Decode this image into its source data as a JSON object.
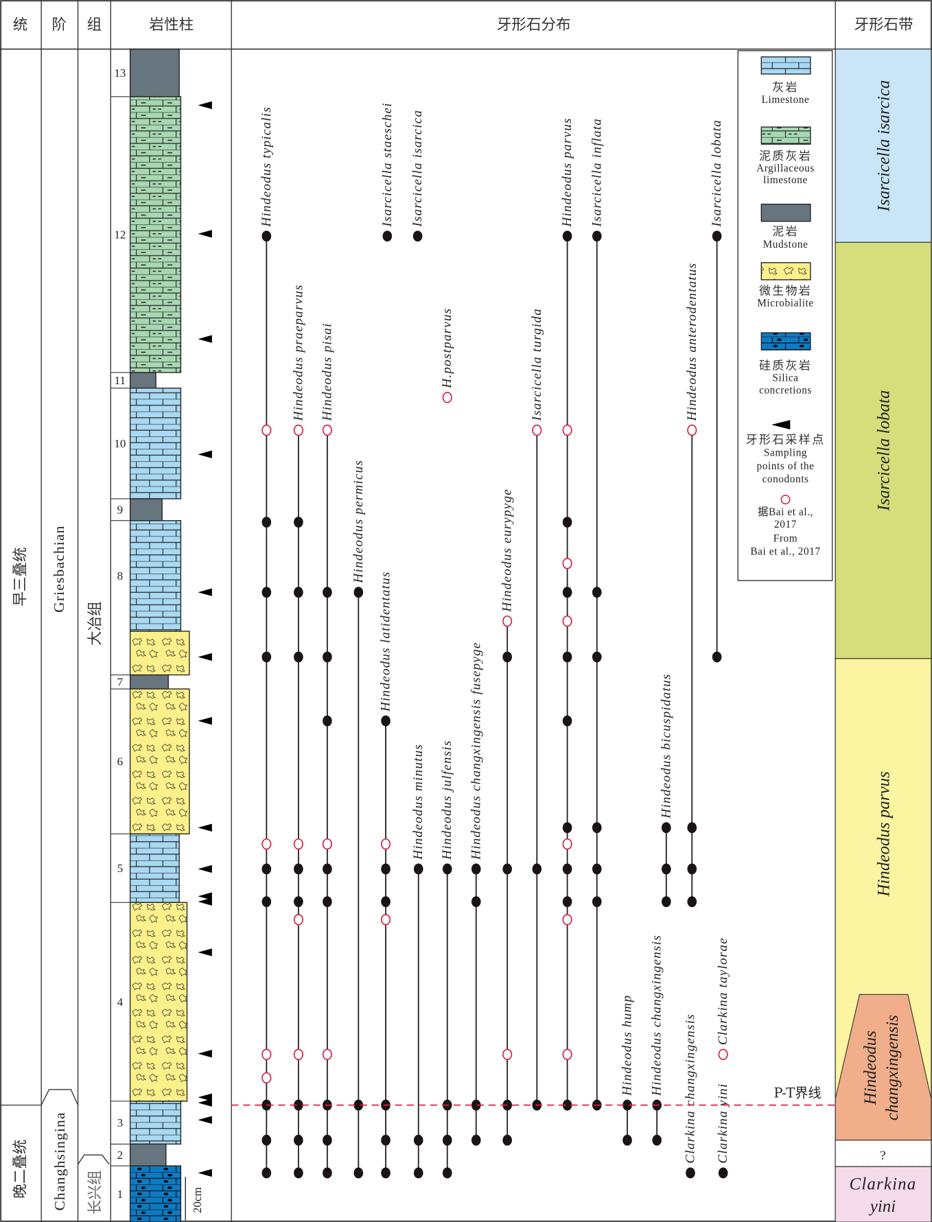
{
  "header": {
    "series": "统",
    "stage": "阶",
    "formation": "组",
    "lithology": "岩性柱",
    "distribution": "牙形石分布",
    "zones": "牙形石带"
  },
  "series": [
    "早三叠统",
    "晚二叠统"
  ],
  "stages": [
    "Griesbachian",
    "Changhsingina"
  ],
  "formations": [
    "大冶组",
    "长兴组"
  ],
  "beds": [
    {
      "number": "13",
      "lithology": "mudstone"
    },
    {
      "number": "12",
      "lithology": "argillaceous-limestone"
    },
    {
      "number": "11",
      "lithology": "mudstone"
    },
    {
      "number": "10",
      "lithology": "limestone"
    },
    {
      "number": "9",
      "lithology": "mudstone"
    },
    {
      "number": "8",
      "lithology": "limestone"
    },
    {
      "number": "",
      "lithology": "microbialite"
    },
    {
      "number": "7",
      "lithology": "mudstone"
    },
    {
      "number": "6",
      "lithology": "microbialite"
    },
    {
      "number": "5",
      "lithology": "limestone"
    },
    {
      "number": "4",
      "lithology": "microbialite"
    },
    {
      "number": "3",
      "lithology": "limestone"
    },
    {
      "number": "2",
      "lithology": "mudstone"
    },
    {
      "number": "1",
      "lithology": "silica-concretions"
    }
  ],
  "scale_bar": "20cm",
  "boundary_label": "P-T界线",
  "species": [
    {
      "name": "Hindeodus typicalis",
      "occurrences": [
        [
          0,
          "this"
        ],
        [
          2,
          "bai"
        ],
        [
          3,
          "this"
        ],
        [
          5,
          "this"
        ],
        [
          7,
          "this"
        ],
        [
          10,
          "bai"
        ],
        [
          11,
          "this"
        ],
        [
          12,
          "this"
        ],
        [
          14,
          "bai"
        ],
        [
          15,
          "bai"
        ],
        [
          16,
          "this"
        ],
        [
          17,
          "this"
        ],
        [
          18,
          "this"
        ]
      ]
    },
    {
      "name": "Hindeodus praeparvus",
      "occurrences": [
        [
          2,
          "bai"
        ],
        [
          3,
          "this"
        ],
        [
          5,
          "this"
        ],
        [
          7,
          "this"
        ],
        [
          10,
          "bai"
        ],
        [
          11,
          "this"
        ],
        [
          12,
          "this"
        ],
        [
          13,
          "bai"
        ],
        [
          14,
          "bai"
        ],
        [
          16,
          "this"
        ],
        [
          17,
          "this"
        ],
        [
          18,
          "this"
        ]
      ]
    },
    {
      "name": "Hindeodus pisai",
      "occurrences": [
        [
          2,
          "bai"
        ],
        [
          5,
          "this"
        ],
        [
          7,
          "this"
        ],
        [
          8,
          "this"
        ],
        [
          10,
          "bai"
        ],
        [
          11,
          "this"
        ],
        [
          12,
          "this"
        ],
        [
          14,
          "bai"
        ],
        [
          16,
          "this"
        ],
        [
          17,
          "this"
        ],
        [
          18,
          "this"
        ]
      ]
    },
    {
      "name": "Hindeodus permicus",
      "occurrences": [
        [
          5,
          "this"
        ],
        [
          16,
          "this"
        ],
        [
          18,
          "this"
        ]
      ]
    },
    {
      "name": "Isarcicella staeschei",
      "occurrences": [
        [
          0,
          "this"
        ]
      ]
    },
    {
      "name": "Hindeodus latidentatus",
      "occurrences": [
        [
          8,
          "this"
        ],
        [
          10,
          "bai"
        ],
        [
          11,
          "this"
        ],
        [
          12,
          "this"
        ],
        [
          13,
          "bai"
        ],
        [
          16,
          "this"
        ],
        [
          17,
          "this"
        ],
        [
          18,
          "this"
        ]
      ]
    },
    {
      "name": "Isarcicella isarcica",
      "occurrences": [
        [
          0,
          "this"
        ]
      ]
    },
    {
      "name": "Hindeodus minutus",
      "occurrences": [
        [
          11,
          "this"
        ],
        [
          17,
          "this"
        ],
        [
          18,
          "this"
        ]
      ]
    },
    {
      "name": "H.postparvus",
      "occurrences": [
        [
          1,
          "bai"
        ]
      ]
    },
    {
      "name": "Hindeodus julfensis",
      "occurrences": [
        [
          11,
          "this"
        ],
        [
          16,
          "this"
        ],
        [
          17,
          "this"
        ],
        [
          18,
          "this"
        ]
      ]
    },
    {
      "name": "Hindeodus changxingensis fusepyge",
      "occurrences": [
        [
          11,
          "this"
        ],
        [
          12,
          "this"
        ],
        [
          16,
          "this"
        ],
        [
          17,
          "this"
        ]
      ]
    },
    {
      "name": "Hindeodus eurypyge",
      "occurrences": [
        [
          6,
          "bai"
        ],
        [
          7,
          "this"
        ],
        [
          11,
          "this"
        ],
        [
          14,
          "bai"
        ],
        [
          16,
          "this"
        ],
        [
          17,
          "this"
        ]
      ]
    },
    {
      "name": "Isarcicella turgida",
      "occurrences": [
        [
          2,
          "bai"
        ],
        [
          11,
          "this"
        ],
        [
          16,
          "this"
        ]
      ]
    },
    {
      "name": "Hindeodus parvus",
      "occurrences": [
        [
          0,
          "this"
        ],
        [
          2,
          "bai"
        ],
        [
          3,
          "this"
        ],
        [
          4,
          "bai"
        ],
        [
          5,
          "this"
        ],
        [
          6,
          "bai"
        ],
        [
          7,
          "this"
        ],
        [
          8,
          "this"
        ],
        [
          9,
          "this"
        ],
        [
          10,
          "bai"
        ],
        [
          11,
          "this"
        ],
        [
          12,
          "this"
        ],
        [
          13,
          "bai"
        ],
        [
          14,
          "bai"
        ],
        [
          16,
          "this"
        ]
      ]
    },
    {
      "name": "Isarcicella inflata",
      "occurrences": [
        [
          0,
          "this"
        ],
        [
          5,
          "this"
        ],
        [
          7,
          "this"
        ],
        [
          9,
          "this"
        ],
        [
          11,
          "this"
        ],
        [
          12,
          "this"
        ],
        [
          16,
          "this"
        ]
      ]
    },
    {
      "name": "Hindeodus hump",
      "occurrences": [
        [
          16,
          "this"
        ],
        [
          17,
          "this"
        ]
      ]
    },
    {
      "name": "Hindeodus changxingensis",
      "occurrences": [
        [
          16,
          "this"
        ],
        [
          17,
          "this"
        ]
      ]
    },
    {
      "name": "Hindeodus bicuspidatus",
      "occurrences": [
        [
          9,
          "this"
        ],
        [
          11,
          "this"
        ],
        [
          12,
          "this"
        ]
      ]
    },
    {
      "name": "Hindeodus anterodentatus",
      "occurrences": [
        [
          2,
          "bai"
        ],
        [
          9,
          "this"
        ],
        [
          11,
          "this"
        ],
        [
          12,
          "this"
        ]
      ]
    },
    {
      "name": "Clarkina changxingensis",
      "occurrences": [
        [
          18,
          "this"
        ]
      ]
    },
    {
      "name": "Isarcicella lobata",
      "occurrences": [
        [
          0,
          "this"
        ],
        [
          7,
          "this"
        ]
      ]
    },
    {
      "name": "Clarkina yini",
      "occurrences": [
        [
          18,
          "this"
        ]
      ]
    },
    {
      "name": "Clarkina taylorae",
      "occurrences": [
        [
          14,
          "bai"
        ]
      ]
    }
  ],
  "legend": {
    "limestone": [
      "灰岩",
      "Limestone"
    ],
    "argillaceous": [
      "泥质灰岩",
      "Argillaceous",
      "limestone"
    ],
    "mudstone": [
      "泥岩",
      "Mudstone"
    ],
    "microbialite": [
      "微生物岩",
      "Microbialite"
    ],
    "silica": [
      "硅质灰岩",
      "Silica",
      "concretions"
    ],
    "sampling": [
      "牙形石采样点",
      "Sampling",
      "points of the",
      "conodonts"
    ],
    "bai": [
      "据Bai et al.,",
      "2017",
      "From",
      "Bai et al., 2017"
    ]
  },
  "zones": [
    {
      "name": "Isarcicella  isarcica",
      "color": "#c8e6f7"
    },
    {
      "name": "Isarcicella lobata",
      "color": "#d6de7c"
    },
    {
      "name": "Hindeodus parvus",
      "color": "#fbf5a2"
    },
    {
      "name": [
        "Hindeodus",
        "changxingensis"
      ],
      "color": "#f1ae8a"
    },
    {
      "name": "?",
      "color": "#ffffff"
    },
    {
      "name": [
        "Clarkina",
        "yini"
      ],
      "color": "#f6dbea"
    }
  ],
  "colors": {
    "limestone": "#a9d9f3",
    "argillaceous": "#a8d8b2",
    "mudstone": "#67767e",
    "microbialite": "#fbf08a",
    "silica": "#0c7bc4",
    "bai_marker": "#d9163a",
    "boundary": "#e0203f"
  }
}
